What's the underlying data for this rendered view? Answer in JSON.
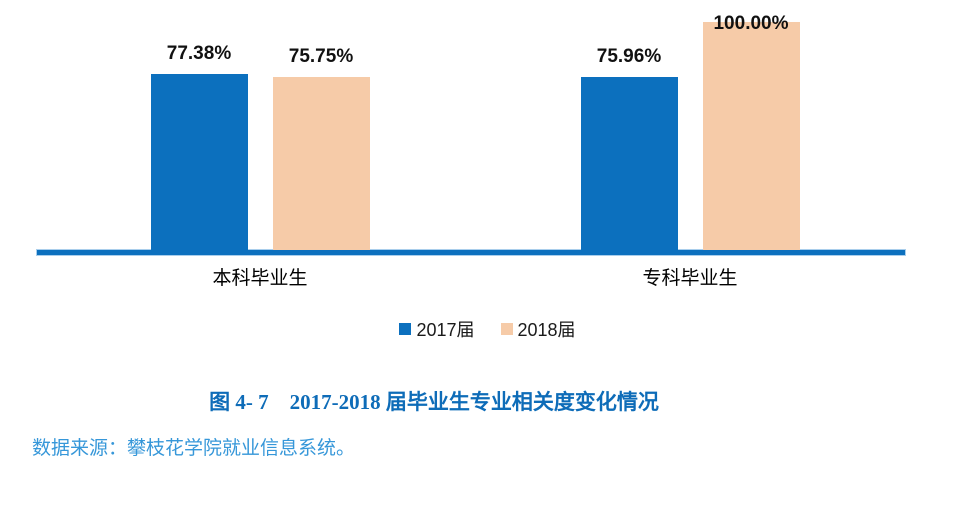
{
  "chart_data": {
    "type": "bar",
    "title": "图 4- 7　2017-2018 届毕业生专业相关度变化情况",
    "categories": [
      "本科毕业生",
      "专科毕业生"
    ],
    "series": [
      {
        "name": "2017届",
        "color": "#0C70BE",
        "values": [
          77.38,
          75.96
        ],
        "labels": [
          "77.38%",
          "75.96%"
        ]
      },
      {
        "name": "2018届",
        "color": "#F6CBA8",
        "values": [
          75.75,
          100.0
        ],
        "labels": [
          "75.75%",
          "100.00%"
        ]
      }
    ],
    "ylim": [
      0,
      100
    ],
    "grid": false,
    "legend_position": "bottom",
    "axis_color": "#0C70BE",
    "axis_halo_color": "#A9CEEC",
    "value_label_color": "#111111"
  },
  "document": {
    "source_note": "数据来源：攀枝花学院就业信息系统。",
    "caption_color": "#0E6CB8",
    "source_color": "#3697D9"
  }
}
